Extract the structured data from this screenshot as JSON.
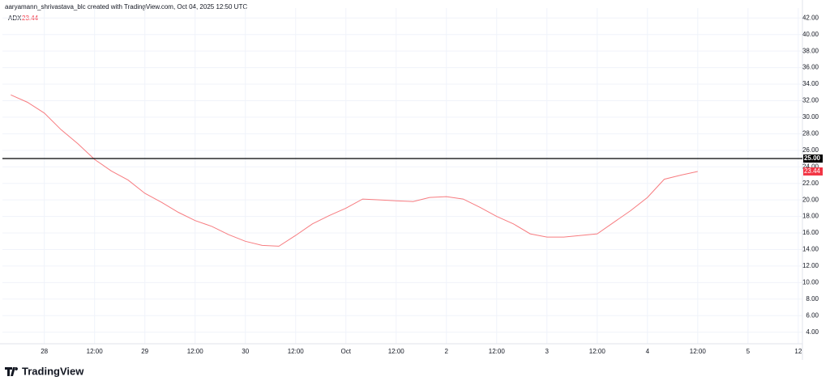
{
  "chart_data": {
    "type": "line",
    "title": "aaryamann_shrivastava_blc created with TradingView.com, Oct 04, 2025 12:50 UTC",
    "logo": "TradingView",
    "x": [
      -8,
      -4,
      0,
      4,
      8,
      12,
      16,
      20,
      24,
      28,
      32,
      36,
      40,
      44,
      48,
      52,
      56,
      60,
      64,
      68,
      72,
      76,
      80,
      84,
      88,
      92,
      96,
      100,
      104,
      108,
      112,
      116,
      120,
      124,
      128,
      132,
      136,
      140,
      144,
      148,
      152,
      156
    ],
    "series": [
      {
        "name": "ADX",
        "color": "#f77c80",
        "values": [
          32.7,
          31.8,
          30.5,
          28.5,
          26.8,
          24.9,
          23.5,
          22.4,
          20.8,
          19.7,
          18.5,
          17.5,
          16.8,
          15.8,
          15.0,
          14.5,
          14.4,
          15.7,
          17.1,
          18.1,
          19.0,
          20.1,
          20.0,
          19.9,
          19.8,
          20.3,
          20.4,
          20.1,
          19.1,
          18.0,
          17.1,
          15.9,
          15.5,
          15.5,
          15.7,
          15.9,
          17.3,
          18.7,
          20.3,
          22.5,
          23.0,
          23.44
        ]
      }
    ],
    "hline": {
      "value": 25,
      "label": "25.00",
      "color": "#000000"
    },
    "xlim": [
      -10,
      181
    ],
    "xticks": [
      {
        "value": 0,
        "label": "28"
      },
      {
        "value": 12,
        "label": "12:00"
      },
      {
        "value": 24,
        "label": "29"
      },
      {
        "value": 36,
        "label": "12:00"
      },
      {
        "value": 48,
        "label": "30"
      },
      {
        "value": 60,
        "label": "12:00"
      },
      {
        "value": 72,
        "label": "Oct"
      },
      {
        "value": 84,
        "label": "12:00"
      },
      {
        "value": 96,
        "label": "2"
      },
      {
        "value": 108,
        "label": "12:00"
      },
      {
        "value": 120,
        "label": "3"
      },
      {
        "value": 132,
        "label": "12:00"
      },
      {
        "value": 144,
        "label": "4"
      },
      {
        "value": 156,
        "label": "12:00"
      },
      {
        "value": 168,
        "label": "5"
      },
      {
        "value": 180,
        "label": "12"
      }
    ],
    "ylim": [
      2.6,
      43.2
    ],
    "yticks": [
      {
        "value": 4,
        "label": "4.00"
      },
      {
        "value": 6,
        "label": "6.00"
      },
      {
        "value": 8,
        "label": "8.00"
      },
      {
        "value": 10,
        "label": "10.00"
      },
      {
        "value": 12,
        "label": "12.00"
      },
      {
        "value": 14,
        "label": "14.00"
      },
      {
        "value": 16,
        "label": "16.00"
      },
      {
        "value": 18,
        "label": "18.00"
      },
      {
        "value": 20,
        "label": "20.00"
      },
      {
        "value": 22,
        "label": "22.00"
      },
      {
        "value": 24,
        "label": "24.00"
      },
      {
        "value": 26,
        "label": "26.00"
      },
      {
        "value": 28,
        "label": "28.00"
      },
      {
        "value": 30,
        "label": "30.00"
      },
      {
        "value": 32,
        "label": "32.00"
      },
      {
        "value": 34,
        "label": "34.00"
      },
      {
        "value": 36,
        "label": "36.00"
      },
      {
        "value": 38,
        "label": "38.00"
      },
      {
        "value": 40,
        "label": "40.00"
      },
      {
        "value": 42,
        "label": "42.00"
      }
    ],
    "grid": true
  }
}
